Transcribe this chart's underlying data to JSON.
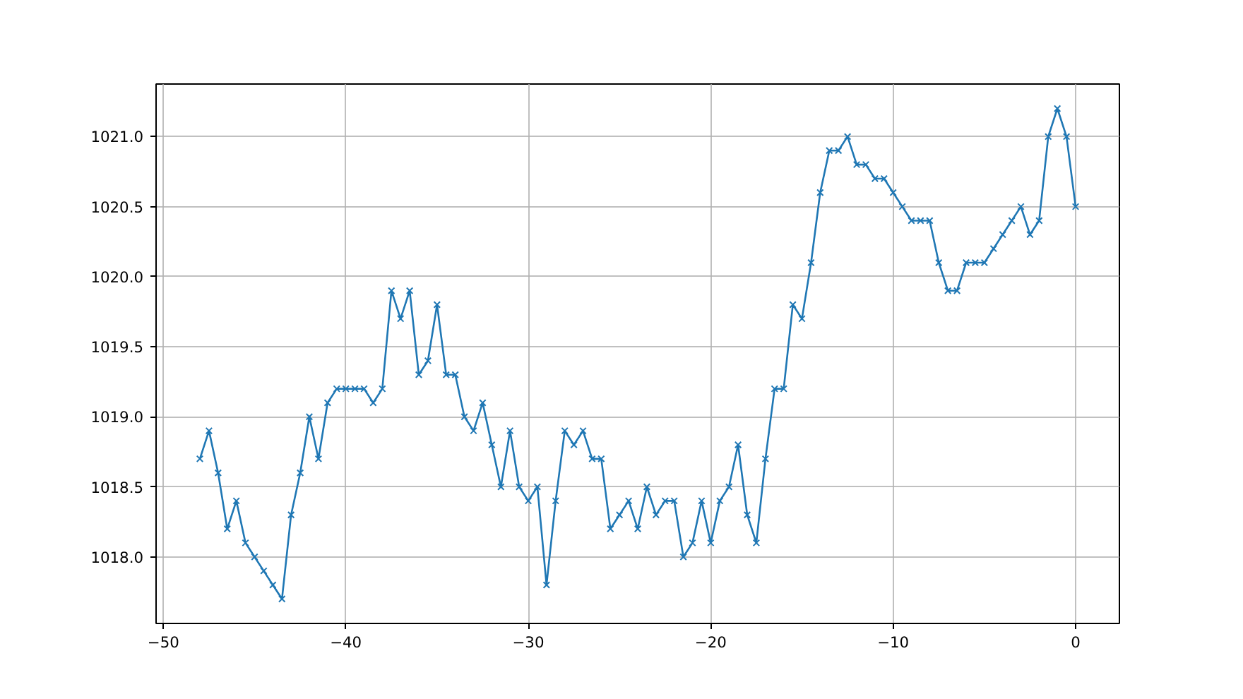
{
  "chart_data": {
    "type": "line",
    "x": [
      -48,
      -47.5,
      -47,
      -46.5,
      -46,
      -45.5,
      -45,
      -44.5,
      -44,
      -43.5,
      -43,
      -42.5,
      -42,
      -41.5,
      -41,
      -40.5,
      -40,
      -39.5,
      -39,
      -38.5,
      -38,
      -37.5,
      -37,
      -36.5,
      -36,
      -35.5,
      -35,
      -34.5,
      -34,
      -33.5,
      -33,
      -32.5,
      -32,
      -31.5,
      -31,
      -30.5,
      -30,
      -29.5,
      -29,
      -28.5,
      -28,
      -27.5,
      -27,
      -26.5,
      -26,
      -25.5,
      -25,
      -24.5,
      -24,
      -23.5,
      -23,
      -22.5,
      -22,
      -21.5,
      -21,
      -20.5,
      -20,
      -19.5,
      -19,
      -18.5,
      -18,
      -17.5,
      -17,
      -16.5,
      -16,
      -15.5,
      -15,
      -14.5,
      -14,
      -13.5,
      -13,
      -12.5,
      -12,
      -11.5,
      -11,
      -10.5,
      -10,
      -9.5,
      -9,
      -8.5,
      -8,
      -7.5,
      -7,
      -6.5,
      -6,
      -5.5,
      -5,
      -4.5,
      -4,
      -3.5,
      -3,
      -2.5,
      -2,
      -1.5,
      -1,
      -0.5,
      0
    ],
    "series": [
      {
        "color": "#1f77b4",
        "values": [
          1018.7,
          1018.9,
          1018.6,
          1018.2,
          1018.4,
          1018.1,
          1018.0,
          1017.9,
          1017.8,
          1017.7,
          1018.3,
          1018.6,
          1019.0,
          1018.7,
          1019.1,
          1019.2,
          1019.2,
          1019.2,
          1019.2,
          1019.1,
          1019.2,
          1019.9,
          1019.7,
          1019.9,
          1019.3,
          1019.4,
          1019.8,
          1019.3,
          1019.3,
          1019.0,
          1018.9,
          1019.1,
          1018.8,
          1018.5,
          1018.9,
          1018.5,
          1018.4,
          1018.5,
          1017.8,
          1018.4,
          1018.9,
          1018.8,
          1018.9,
          1018.7,
          1018.7,
          1018.2,
          1018.3,
          1018.4,
          1018.2,
          1018.5,
          1018.3,
          1018.4,
          1018.4,
          1018.0,
          1018.1,
          1018.4,
          1018.1,
          1018.4,
          1018.5,
          1018.8,
          1018.3,
          1018.1,
          1018.7,
          1019.2,
          1019.2,
          1019.8,
          1019.7,
          1020.1,
          1020.6,
          1020.9,
          1020.9,
          1021.0,
          1020.8,
          1020.8,
          1020.7,
          1020.7,
          1020.6,
          1020.5,
          1020.4,
          1020.4,
          1020.4,
          1020.1,
          1019.9,
          1019.9,
          1020.1,
          1020.1,
          1020.1,
          1020.2,
          1020.3,
          1020.4,
          1020.5,
          1020.3,
          1020.4,
          1021.0,
          1021.2,
          1021.0,
          1020.5
        ]
      }
    ],
    "xlim": [
      -50.4,
      2.4
    ],
    "ylim": [
      1017.525,
      1021.375
    ],
    "xticks": [
      -50,
      -40,
      -30,
      -20,
      -10,
      0
    ],
    "yticks": [
      {
        "value": 1018,
        "label": "1018.0"
      },
      {
        "value": 1018.5,
        "label": "1018.5"
      },
      {
        "value": 1019,
        "label": "1019.0"
      },
      {
        "value": 1019.5,
        "label": "1019.5"
      },
      {
        "value": 1020,
        "label": "1020.0"
      },
      {
        "value": 1020.5,
        "label": "1020.5"
      },
      {
        "value": 1021,
        "label": "1021.0"
      }
    ],
    "grid": true,
    "marker": "cross",
    "line_style": "solid"
  }
}
